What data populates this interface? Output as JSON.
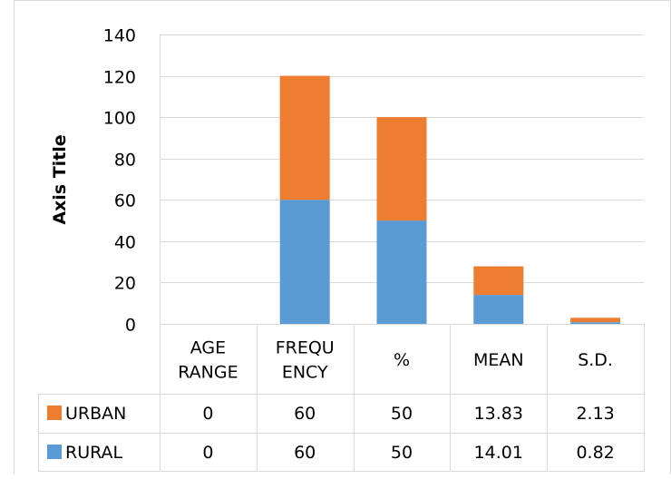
{
  "chart_data": {
    "type": "bar",
    "stacked": true,
    "title": "",
    "xlabel": "",
    "ylabel": "Axis Title",
    "ylim": [
      0,
      140
    ],
    "yticks": [
      0,
      20,
      40,
      60,
      80,
      100,
      120,
      140
    ],
    "grid": true,
    "legend_placement": "bottom data table",
    "categories": [
      "AGE RANGE",
      "FREQUENCY",
      "%",
      "MEAN",
      "S.D."
    ],
    "category_lines": [
      [
        "AGE",
        "RANGE"
      ],
      [
        "FREQU",
        "ENCY"
      ],
      [
        "%"
      ],
      [
        "MEAN"
      ],
      [
        "S.D."
      ]
    ],
    "series": [
      {
        "name": "RURAL",
        "values": [
          0,
          60,
          50,
          14.01,
          0.82
        ],
        "value_labels": [
          "0",
          "60",
          "50",
          "14.01",
          "0.82"
        ],
        "color": "#5b9bd5"
      },
      {
        "name": "URBAN",
        "values": [
          0,
          60,
          50,
          13.83,
          2.13
        ],
        "value_labels": [
          "0",
          "60",
          "50",
          "13.83",
          "2.13"
        ],
        "color": "#ed7d31"
      }
    ],
    "table_row_order": [
      "URBAN",
      "RURAL"
    ]
  }
}
